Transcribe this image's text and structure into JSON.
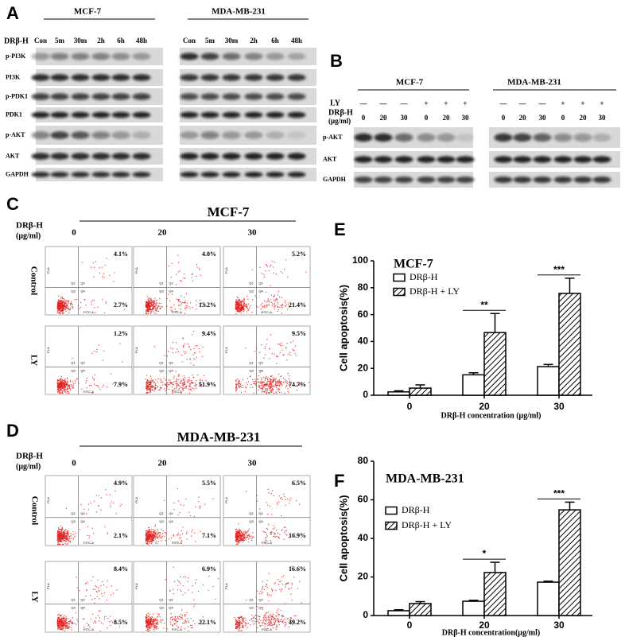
{
  "panel_a": {
    "label": "A",
    "treatment": "DRβ-H",
    "groups": [
      {
        "name": "MCF-7",
        "lanes": [
          "Con",
          "5m",
          "30m",
          "2h",
          "6h",
          "48h"
        ]
      },
      {
        "name": "MDA-MB-231",
        "lanes": [
          "Con",
          "5m",
          "30m",
          "2h",
          "6h",
          "48h"
        ]
      }
    ],
    "rows": [
      "p-PI3K",
      "PI3K",
      "p-PDK1",
      "PDK1",
      "p-AKT",
      "AKT",
      "GAPDH"
    ]
  },
  "panel_b": {
    "label": "B",
    "inhibitor": "LY",
    "treatment": "DRβ-H",
    "unit": "(μg/ml)",
    "groups": [
      {
        "name": "MCF-7",
        "inhibitor_lanes": [
          "—",
          "—",
          "—",
          "+",
          "+",
          "+"
        ],
        "dose_lanes": [
          "0",
          "20",
          "30",
          "0",
          "20",
          "30"
        ]
      },
      {
        "name": "MDA-MB-231",
        "inhibitor_lanes": [
          "—",
          "—",
          "—",
          "+",
          "+",
          "+"
        ],
        "dose_lanes": [
          "0",
          "20",
          "30",
          "0",
          "20",
          "30"
        ]
      }
    ],
    "rows": [
      "p-AKT",
      "AKT",
      "GAPDH"
    ]
  },
  "panel_c": {
    "label": "C",
    "title": "MCF-7",
    "treatment": "DRβ-H",
    "unit": "(μg/ml)",
    "columns": [
      "0",
      "20",
      "30"
    ],
    "rows": [
      {
        "name": "Control",
        "upper_right": [
          "4.1%",
          "4.0%",
          "5.2%"
        ],
        "lower_right": [
          "2.7%",
          "13.2%",
          "21.4%"
        ]
      },
      {
        "name": "LY",
        "upper_right": [
          "1.2%",
          "9.4%",
          "9.5%"
        ],
        "lower_right": [
          "7.9%",
          "51.9%",
          "74.7%"
        ]
      }
    ],
    "quadrants": [
      "Q1",
      "Q2",
      "Q3",
      "Q4"
    ],
    "x_axis": "FITC-A",
    "y_axis": "PI-A"
  },
  "panel_d": {
    "label": "D",
    "title": "MDA-MB-231",
    "treatment": "DRβ-H",
    "unit": "(μg/ml)",
    "columns": [
      "0",
      "20",
      "30"
    ],
    "rows": [
      {
        "name": "Control",
        "upper_right": [
          "4.9%",
          "5.5%",
          "6.5%"
        ],
        "lower_right": [
          "2.1%",
          "7.1%",
          "16.9%"
        ]
      },
      {
        "name": "LY",
        "upper_right": [
          "8.4%",
          "6.9%",
          "16.6%"
        ],
        "lower_right": [
          "8.5%",
          "22.1%",
          "49.2%"
        ]
      }
    ],
    "quadrants": [
      "Q1",
      "Q2",
      "Q3",
      "Q4"
    ],
    "x_axis": "FITC-A",
    "y_axis": "PI-A"
  },
  "chart_data": [
    {
      "panel": "E",
      "type": "bar",
      "title": "MCF-7",
      "y_label": "Cell apoptosis(%)",
      "x_label": "DRβ-H concentration (μg/ml)",
      "categories": [
        "0",
        "20",
        "30"
      ],
      "series": [
        {
          "name": "DRβ-H",
          "color": "#000000",
          "pattern": "none",
          "values": [
            2.5,
            15.2,
            21.3
          ],
          "errors": [
            0.8,
            1.5,
            1.6
          ]
        },
        {
          "name": "DRβ-H + LY",
          "color": "#000000",
          "pattern": "hatch",
          "values": [
            5.3,
            46.6,
            75.8
          ],
          "errors": [
            2.4,
            14.2,
            11.3
          ]
        }
      ],
      "significance": [
        null,
        "**",
        "***"
      ],
      "ylim": [
        0,
        100
      ],
      "yticks": [
        0,
        20,
        40,
        60,
        80,
        100
      ],
      "legend": "upper left"
    },
    {
      "panel": "F",
      "type": "bar",
      "title": "MDA-MB-231",
      "y_label": "Cell apoptosis(%)",
      "x_label": "DRβ-H concentration(μg/ml)",
      "categories": [
        "0",
        "20",
        "30"
      ],
      "series": [
        {
          "name": "DRβ-H",
          "color": "#000000",
          "pattern": "none",
          "values": [
            2.5,
            7.4,
            17.3
          ],
          "errors": [
            0.5,
            0.5,
            0.5
          ]
        },
        {
          "name": "DRβ-H + LY",
          "color": "#000000",
          "pattern": "hatch",
          "values": [
            6.2,
            22.3,
            54.8
          ],
          "errors": [
            1.0,
            5.3,
            4.0
          ]
        }
      ],
      "significance": [
        null,
        "*",
        "***"
      ],
      "ylim": [
        0,
        80
      ],
      "yticks": [
        0,
        20,
        40,
        60,
        80
      ],
      "legend": "upper left"
    }
  ]
}
